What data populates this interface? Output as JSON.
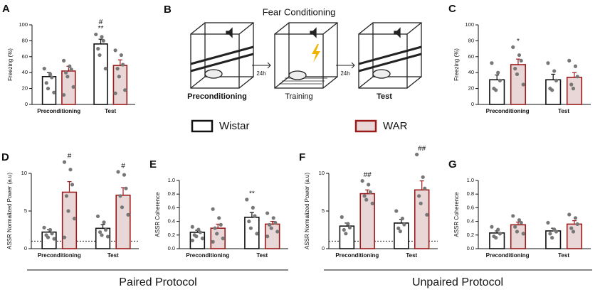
{
  "diagram": {
    "label": "B",
    "title": "Fear Conditioning",
    "stages": [
      "Preconditioning",
      "Training",
      "Test"
    ],
    "arrows": [
      "24h",
      "24h"
    ]
  },
  "protocols": [
    "Paired Protocol",
    "Unpaired Protocol"
  ],
  "chart_data": [
    {
      "type": "bar",
      "label": "A",
      "ylabel": "Freezing (%)",
      "categories": [
        "Preconditioning",
        "Test"
      ],
      "ylim": [
        0,
        100
      ],
      "yticks": [
        0,
        20,
        40,
        60,
        80,
        100
      ],
      "series": [
        {
          "name": "Wistar",
          "color": "#111111",
          "fill": "#ffffff",
          "values": [
            35,
            76
          ],
          "errors": [
            5,
            6
          ],
          "points": [
            [
              45,
              38,
              34,
              27,
              20,
              15
            ],
            [
              88,
              85,
              80,
              70,
              62,
              45
            ]
          ],
          "annotations": [
            null,
            [
              "#",
              "**"
            ]
          ]
        },
        {
          "name": "WAR",
          "color": "#9b1b1b",
          "fill": "#e9d6d6",
          "values": [
            42,
            49
          ],
          "errors": [
            6,
            7
          ],
          "points": [
            [
              55,
              48,
              44,
              40,
              35,
              22,
              12
            ],
            [
              68,
              62,
              50,
              45,
              35,
              18,
              14
            ]
          ],
          "annotations": [
            null,
            null
          ]
        }
      ]
    },
    {
      "type": "bar",
      "label": "C",
      "ylabel": "Freezing (%)",
      "categories": [
        "Preconditioning",
        "Test"
      ],
      "ylim": [
        0,
        100
      ],
      "yticks": [
        0,
        20,
        40,
        60,
        80,
        100
      ],
      "series": [
        {
          "name": "Wistar",
          "color": "#111111",
          "fill": "#ffffff",
          "values": [
            31,
            31
          ],
          "errors": [
            6,
            7
          ],
          "points": [
            [
              52,
              40,
              30,
              20,
              18
            ],
            [
              52,
              42,
              30,
              20,
              18
            ]
          ],
          "annotations": [
            null,
            null
          ]
        },
        {
          "name": "WAR",
          "color": "#9b1b1b",
          "fill": "#e9d6d6",
          "values": [
            50,
            34
          ],
          "errors": [
            7,
            6
          ],
          "points": [
            [
              72,
              62,
              55,
              45,
              38,
              25
            ],
            [
              55,
              48,
              35,
              25,
              20
            ]
          ],
          "annotations": [
            [
              "*"
            ],
            null
          ]
        }
      ]
    },
    {
      "type": "bar",
      "label": "D",
      "ylabel": "ASSR Normalized Power (a.u)",
      "categories": [
        "Preconditioning",
        "Test"
      ],
      "ylim": [
        0,
        10
      ],
      "yticks": [
        0,
        5,
        10
      ],
      "reference_line": 1,
      "series": [
        {
          "name": "Wistar",
          "color": "#111111",
          "fill": "#ffffff",
          "values": [
            2.2,
            2.7
          ],
          "errors": [
            0.3,
            0.5
          ],
          "points": [
            [
              2.8,
              2.5,
              2.0,
              1.8,
              1.5,
              1.3
            ],
            [
              4.3,
              3.5,
              2.5,
              2.2,
              1.8,
              1.6
            ]
          ],
          "annotations": [
            null,
            null
          ]
        },
        {
          "name": "WAR",
          "color": "#9b1b1b",
          "fill": "#e9d6d6",
          "values": [
            7.5,
            7.1
          ],
          "errors": [
            1.4,
            1.0
          ],
          "points": [
            [
              11.5,
              10.5,
              8.5,
              7,
              5,
              4,
              1.5
            ],
            [
              10.2,
              9.8,
              8,
              7,
              5.5,
              4.5
            ]
          ],
          "annotations": [
            [
              "#"
            ],
            [
              "#"
            ]
          ]
        }
      ]
    },
    {
      "type": "bar",
      "label": "E",
      "ylabel": "ASSR Coherence",
      "categories": [
        "Preconditioning",
        "Test"
      ],
      "ylim": [
        0,
        1
      ],
      "yticks": [
        {
          "value": 0,
          "label": "0.0"
        },
        0.2,
        0.4,
        0.6,
        0.8,
        {
          "value": 1,
          "label": "1.0"
        }
      ],
      "series": [
        {
          "name": "Wistar",
          "color": "#111111",
          "fill": "#ffffff",
          "values": [
            0.24,
            0.46
          ],
          "errors": [
            0.03,
            0.07
          ],
          "points": [
            [
              0.32,
              0.28,
              0.24,
              0.2,
              0.18,
              0.15,
              0.12
            ],
            [
              0.72,
              0.6,
              0.48,
              0.4,
              0.3,
              0.22
            ]
          ],
          "annotations": [
            null,
            [
              "**"
            ]
          ]
        },
        {
          "name": "WAR",
          "color": "#9b1b1b",
          "fill": "#e9d6d6",
          "values": [
            0.3,
            0.36
          ],
          "errors": [
            0.06,
            0.04
          ],
          "points": [
            [
              0.58,
              0.45,
              0.35,
              0.3,
              0.22,
              0.15,
              0.1
            ],
            [
              0.52,
              0.45,
              0.38,
              0.35,
              0.3,
              0.25,
              0.18
            ]
          ],
          "annotations": [
            null,
            null
          ]
        }
      ]
    },
    {
      "type": "bar",
      "label": "F",
      "ylabel": "ASSR Normalized Power (a.u)",
      "categories": [
        "Preconditioning",
        "Test"
      ],
      "ylim": [
        0,
        10
      ],
      "yticks": [
        0,
        5,
        10
      ],
      "reference_line": 1,
      "series": [
        {
          "name": "Wistar",
          "color": "#111111",
          "fill": "#ffffff",
          "values": [
            3.0,
            3.4
          ],
          "errors": [
            0.4,
            0.5
          ],
          "points": [
            [
              4.2,
              3.3,
              2.8,
              2.5,
              2.0
            ],
            [
              5,
              4,
              3.2,
              2.7,
              2.3
            ]
          ],
          "annotations": [
            null,
            null
          ]
        },
        {
          "name": "WAR",
          "color": "#9b1b1b",
          "fill": "#e9d6d6",
          "values": [
            7.3,
            7.8
          ],
          "errors": [
            0.5,
            1.2
          ],
          "points": [
            [
              9.0,
              8.5,
              7.5,
              7,
              6.5,
              6
            ],
            [
              12.5,
              9.5,
              8,
              7,
              6,
              4.5
            ]
          ],
          "annotations": [
            [
              "##"
            ],
            [
              "##"
            ]
          ]
        }
      ]
    },
    {
      "type": "bar",
      "label": "G",
      "ylabel": "ASSR Coherence",
      "categories": [
        "Preconditioning",
        "Test"
      ],
      "ylim": [
        0,
        1
      ],
      "yticks": [
        {
          "value": 0,
          "label": "0.0"
        },
        0.2,
        0.4,
        0.6,
        0.8,
        {
          "value": 1,
          "label": "1.0"
        }
      ],
      "series": [
        {
          "name": "Wistar",
          "color": "#111111",
          "fill": "#ffffff",
          "values": [
            0.23,
            0.26
          ],
          "errors": [
            0.03,
            0.04
          ],
          "points": [
            [
              0.32,
              0.28,
              0.22,
              0.18,
              0.16
            ],
            [
              0.38,
              0.28,
              0.25,
              0.22,
              0.16
            ]
          ],
          "annotations": [
            null,
            null
          ]
        },
        {
          "name": "WAR",
          "color": "#9b1b1b",
          "fill": "#e9d6d6",
          "values": [
            0.35,
            0.36
          ],
          "errors": [
            0.04,
            0.05
          ],
          "points": [
            [
              0.48,
              0.42,
              0.38,
              0.32,
              0.25,
              0.22
            ],
            [
              0.5,
              0.45,
              0.36,
              0.3,
              0.25
            ]
          ],
          "annotations": [
            null,
            null
          ]
        }
      ]
    }
  ]
}
